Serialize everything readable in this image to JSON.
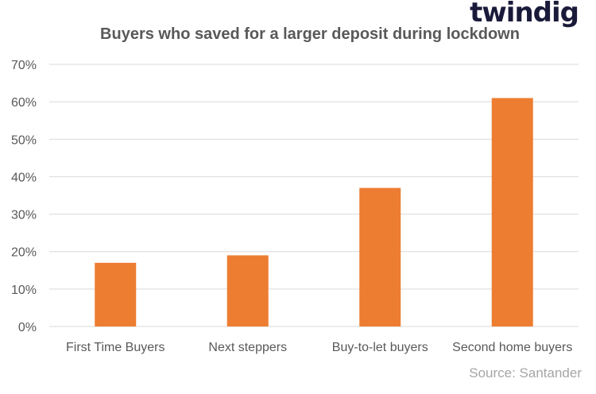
{
  "brand": {
    "name": "twindig"
  },
  "source": "Source: Santander",
  "colors": {
    "bar": "#ED7D31",
    "grid": "#d9d9d9",
    "text": "#595959",
    "brand": "#1a1a3a",
    "brand_accent": "#ED7D31"
  },
  "chart_data": {
    "type": "bar",
    "title": "Buyers who saved for a larger deposit during lockdown",
    "xlabel": "",
    "ylabel": "",
    "categories": [
      "First Time Buyers",
      "Next steppers",
      "Buy-to-let buyers",
      "Second home buyers"
    ],
    "values": [
      17,
      19,
      37,
      61
    ],
    "ylim": [
      0,
      70
    ],
    "yticks": [
      0,
      10,
      20,
      30,
      40,
      50,
      60,
      70
    ],
    "ytick_labels": [
      "0%",
      "10%",
      "20%",
      "30%",
      "40%",
      "50%",
      "60%",
      "70%"
    ],
    "grid": true,
    "legend": "none"
  }
}
